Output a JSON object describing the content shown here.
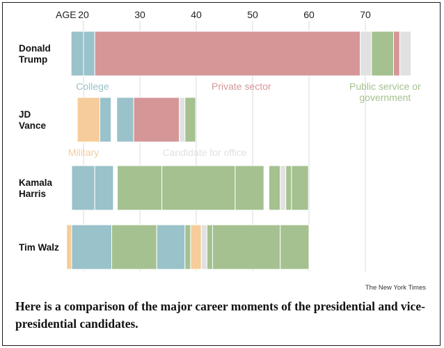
{
  "chart_data": {
    "type": "timeline",
    "axis_label": "AGE",
    "x_ticks": [
      20,
      30,
      40,
      50,
      60,
      70
    ],
    "xlim": [
      18,
      78
    ],
    "categories": {
      "college": {
        "label": "College",
        "color": "#99c2ca"
      },
      "private": {
        "label": "Private sector",
        "color": "#d59698"
      },
      "public": {
        "label": "Public service or government",
        "label_lines": [
          "Public service or",
          "government"
        ],
        "color": "#a4c18f"
      },
      "military": {
        "label": "Military",
        "color": "#f6cc9b"
      },
      "candidate": {
        "label": "Candidate for office",
        "color": "#e1e1e1"
      }
    },
    "candidates": [
      {
        "name_lines": [
          "Donald",
          "Trump"
        ],
        "segments": [
          {
            "start": 17.8,
            "end": 20.0,
            "cat": "college"
          },
          {
            "start": 20.0,
            "end": 22.0,
            "cat": "college"
          },
          {
            "start": 22.0,
            "end": 69.1,
            "cat": "private"
          },
          {
            "start": 69.1,
            "end": 71.1,
            "cat": "candidate"
          },
          {
            "start": 71.1,
            "end": 75.0,
            "cat": "public"
          },
          {
            "start": 75.0,
            "end": 76.1,
            "cat": "private"
          },
          {
            "start": 76.1,
            "end": 78.1,
            "cat": "candidate"
          }
        ]
      },
      {
        "name_lines": [
          "JD",
          "Vance"
        ],
        "segments": [
          {
            "start": 18.9,
            "end": 22.9,
            "cat": "military"
          },
          {
            "start": 22.9,
            "end": 24.9,
            "cat": "college"
          },
          {
            "start": 25.9,
            "end": 28.9,
            "cat": "college"
          },
          {
            "start": 28.9,
            "end": 37.0,
            "cat": "private"
          },
          {
            "start": 37.0,
            "end": 38.0,
            "cat": "candidate"
          },
          {
            "start": 38.0,
            "end": 39.9,
            "cat": "public"
          }
        ]
      },
      {
        "name_lines": [
          "Kamala",
          "Harris"
        ],
        "segments": [
          {
            "start": 17.9,
            "end": 22.0,
            "cat": "college"
          },
          {
            "start": 22.0,
            "end": 25.3,
            "cat": "college"
          },
          {
            "start": 26.0,
            "end": 33.9,
            "cat": "public"
          },
          {
            "start": 33.9,
            "end": 46.9,
            "cat": "public"
          },
          {
            "start": 46.9,
            "end": 52.0,
            "cat": "public"
          },
          {
            "start": 52.9,
            "end": 54.9,
            "cat": "public"
          },
          {
            "start": 54.9,
            "end": 55.9,
            "cat": "candidate"
          },
          {
            "start": 55.9,
            "end": 56.9,
            "cat": "public"
          },
          {
            "start": 56.9,
            "end": 59.9,
            "cat": "public"
          }
        ]
      },
      {
        "name_lines": [
          "Tim Walz"
        ],
        "segments": [
          {
            "start": 17.0,
            "end": 17.9,
            "cat": "military"
          },
          {
            "start": 17.9,
            "end": 25.0,
            "cat": "college"
          },
          {
            "start": 25.0,
            "end": 33.0,
            "cat": "public"
          },
          {
            "start": 33.0,
            "end": 38.0,
            "cat": "college"
          },
          {
            "start": 38.0,
            "end": 39.0,
            "cat": "public"
          },
          {
            "start": 39.0,
            "end": 40.9,
            "cat": "military"
          },
          {
            "start": 40.9,
            "end": 41.9,
            "cat": "candidate"
          },
          {
            "start": 41.9,
            "end": 42.9,
            "cat": "public"
          },
          {
            "start": 42.9,
            "end": 54.9,
            "cat": "public"
          },
          {
            "start": 54.9,
            "end": 60.0,
            "cat": "public"
          }
        ]
      }
    ],
    "annotations": [
      {
        "cat": "college",
        "age": 21.6,
        "row": 0
      },
      {
        "cat": "private",
        "age": 48.0,
        "row": 0
      },
      {
        "cat": "public",
        "age": 73.5,
        "row": 0
      },
      {
        "cat": "military",
        "age": 20.0,
        "row": 1
      },
      {
        "cat": "candidate",
        "age": 41.5,
        "row": 1
      }
    ]
  },
  "credit": "The New York Times",
  "caption": "Here is a comparison of the major career moments of the presidential and vice-presidential candidates."
}
